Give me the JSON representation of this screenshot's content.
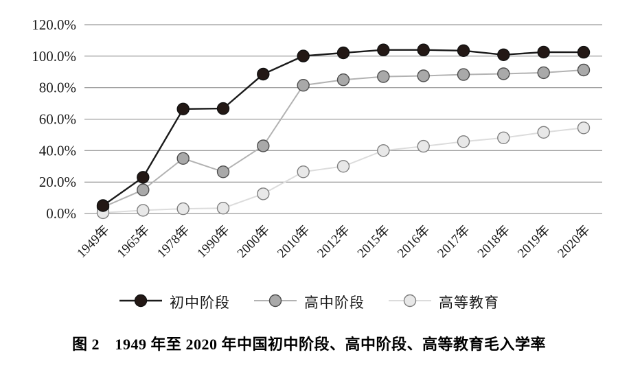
{
  "chart_data": {
    "type": "line",
    "title": "图 2　1949 年至 2020 年中国初中阶段、高中阶段、高等教育毛入学率",
    "categories": [
      "1949年",
      "1965年",
      "1978年",
      "1990年",
      "2000年",
      "2010年",
      "2012年",
      "2015年",
      "2016年",
      "2017年",
      "2018年",
      "2019年",
      "2020年"
    ],
    "series": [
      {
        "id": "junior-middle",
        "name": "初中阶段",
        "values": [
          5.0,
          23.0,
          66.4,
          66.7,
          88.6,
          100.1,
          102.1,
          104.0,
          104.0,
          103.5,
          100.9,
          102.6,
          102.5
        ],
        "line_color": "#1a1a1a",
        "line_width": 2.4,
        "marker_fill": "#231815",
        "marker_stroke": "#111111"
      },
      {
        "id": "senior-high",
        "name": "高中阶段",
        "values": [
          4.0,
          15.0,
          35.0,
          26.5,
          43.0,
          81.5,
          85.0,
          87.0,
          87.5,
          88.3,
          88.8,
          89.5,
          91.2
        ],
        "line_color": "#b2b2b2",
        "line_width": 2.0,
        "marker_fill": "#a9a9a9",
        "marker_stroke": "#4d4d4d"
      },
      {
        "id": "higher-education",
        "name": "高等教育",
        "values": [
          0.5,
          2.0,
          3.0,
          3.4,
          12.5,
          26.5,
          30.0,
          40.0,
          42.7,
          45.7,
          48.1,
          51.6,
          54.4
        ],
        "line_color": "#dcdcdc",
        "line_width": 2.0,
        "marker_fill": "#e8e8e8",
        "marker_stroke": "#7f7f7f"
      }
    ],
    "ylim": [
      0,
      120
    ],
    "ytick_step": 20,
    "ytick_labels": [
      "120.0%",
      "100.0%",
      "80.0%",
      "60.0%",
      "40.0%",
      "20.0%",
      "0.0%"
    ],
    "grid": "horizontal",
    "gridline_color": "#808080",
    "legend_position": "bottom"
  }
}
